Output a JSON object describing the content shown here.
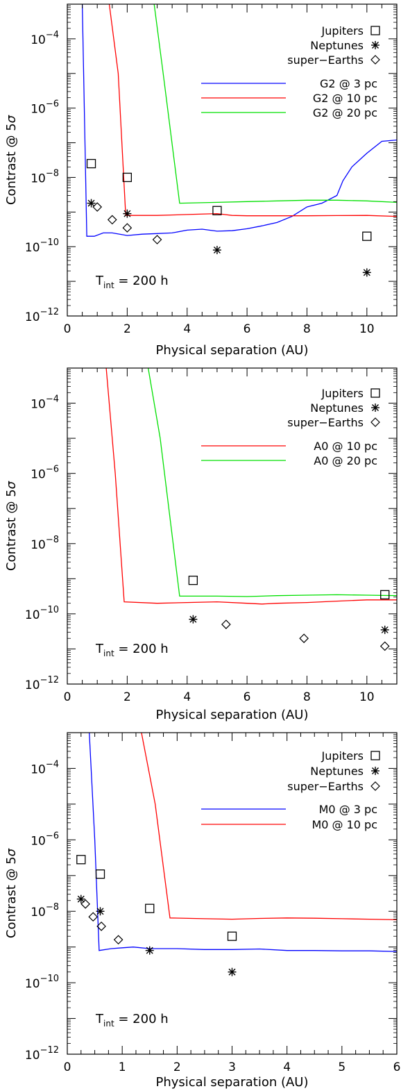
{
  "chart_data": [
    {
      "type": "line",
      "xlabel": "Physical separation (AU)",
      "ylabel": "Contrast @ 5σ",
      "ylabel_parts": {
        "text": "Contrast @ 5",
        "sym": "σ"
      },
      "xlim": [
        0,
        11
      ],
      "ylim": [
        1e-12,
        0.001
      ],
      "y_scale": "log",
      "xticks": [
        0,
        2,
        4,
        6,
        8,
        10
      ],
      "yticks": [
        {
          "value": 1e-12,
          "base": "10",
          "exp": "−12"
        },
        {
          "value": 1e-10,
          "base": "10",
          "exp": "−10"
        },
        {
          "value": 1e-08,
          "base": "10",
          "exp": "−8"
        },
        {
          "value": 1e-06,
          "base": "10",
          "exp": "−6"
        },
        {
          "value": 0.0001,
          "base": "10",
          "exp": "−4"
        }
      ],
      "annotation": {
        "t": "T",
        "sub": "int",
        "rest": " = 200 h"
      },
      "legend_markers": [
        {
          "name": "Jupiters",
          "marker": "square"
        },
        {
          "name": "Neptunes",
          "marker": "asterisk"
        },
        {
          "name": "super−Earths",
          "marker": "diamond"
        }
      ],
      "series": [
        {
          "name": "G2 @ 3 pc",
          "color": "#0000ff",
          "x": [
            0.5,
            0.65,
            0.9,
            1.2,
            1.5,
            2.0,
            2.5,
            3.0,
            3.5,
            4.0,
            4.5,
            5.0,
            5.5,
            6.0,
            6.5,
            7.0,
            7.5,
            8.0,
            8.5,
            9.0,
            9.2,
            9.5,
            10.0,
            10.5,
            11.0
          ],
          "y": [
            0.001,
            2e-10,
            2e-10,
            2.5e-10,
            2.5e-10,
            2.1e-10,
            2.3e-10,
            2.4e-10,
            2.5e-10,
            3e-10,
            3.2e-10,
            2.8e-10,
            2.9e-10,
            3.3e-10,
            4e-10,
            5e-10,
            7.5e-10,
            1.4e-09,
            1.8e-09,
            3e-09,
            8e-09,
            2e-08,
            5e-08,
            1.1e-07,
            1.2e-07
          ]
        },
        {
          "name": "G2 @ 10 pc",
          "color": "#ff0000",
          "x": [
            1.4,
            1.7,
            1.95,
            3.0,
            4.0,
            5.0,
            5.5,
            6.0,
            7.0,
            8.0,
            9.0,
            10.0,
            11.0
          ],
          "y": [
            0.001,
            1e-05,
            8e-10,
            8e-10,
            8.5e-10,
            9e-10,
            8e-10,
            7.8e-10,
            7.8e-10,
            7.8e-10,
            7.9e-10,
            8e-10,
            7.5e-10
          ]
        },
        {
          "name": "G2 @ 20 pc",
          "color": "#00e000",
          "x": [
            2.9,
            3.2,
            3.75,
            5.0,
            6.0,
            7.0,
            8.0,
            9.0,
            10.0,
            11.0
          ],
          "y": [
            0.001,
            1e-05,
            1.8e-09,
            1.9e-09,
            2e-09,
            2.1e-09,
            2.2e-09,
            2.2e-09,
            2.1e-09,
            1.9e-09
          ]
        }
      ],
      "points": {
        "Jupiters": {
          "x": [
            0.8,
            2.0,
            5.0,
            10.0
          ],
          "y": [
            2.5e-08,
            1e-08,
            1.1e-09,
            2e-10
          ]
        },
        "Neptunes": {
          "x": [
            0.8,
            2.0,
            5.0,
            10.0
          ],
          "y": [
            1.8e-09,
            9e-10,
            8e-11,
            1.8e-11
          ]
        },
        "super−Earths": {
          "x": [
            1.0,
            1.5,
            2.0,
            3.0
          ],
          "y": [
            1.4e-09,
            6e-10,
            3.5e-10,
            1.6e-10
          ]
        }
      }
    },
    {
      "type": "line",
      "xlabel": "Physical separation (AU)",
      "ylabel": "Contrast @ 5σ",
      "ylabel_parts": {
        "text": "Contrast @ 5",
        "sym": "σ"
      },
      "xlim": [
        0,
        11
      ],
      "ylim": [
        1e-12,
        0.001
      ],
      "y_scale": "log",
      "xticks": [
        0,
        2,
        4,
        6,
        8,
        10
      ],
      "yticks": [
        {
          "value": 1e-12,
          "base": "10",
          "exp": "−12"
        },
        {
          "value": 1e-10,
          "base": "10",
          "exp": "−10"
        },
        {
          "value": 1e-08,
          "base": "10",
          "exp": "−8"
        },
        {
          "value": 1e-06,
          "base": "10",
          "exp": "−6"
        },
        {
          "value": 0.0001,
          "base": "10",
          "exp": "−4"
        }
      ],
      "annotation": {
        "t": "T",
        "sub": "int",
        "rest": " = 200 h"
      },
      "legend_markers": [
        {
          "name": "Jupiters",
          "marker": "square"
        },
        {
          "name": "Neptunes",
          "marker": "asterisk"
        },
        {
          "name": "super−Earths",
          "marker": "diamond"
        }
      ],
      "series": [
        {
          "name": "A0 @ 10 pc",
          "color": "#ff0000",
          "x": [
            1.3,
            1.6,
            1.9,
            3.0,
            4.0,
            5.0,
            6.0,
            6.5,
            7.0,
            8.0,
            9.0,
            10.0,
            11.0
          ],
          "y": [
            0.001,
            1e-06,
            2.2e-10,
            2e-10,
            2.1e-10,
            2.2e-10,
            2e-10,
            1.9e-10,
            2e-10,
            2.1e-10,
            2.3e-10,
            2.5e-10,
            2.5e-10
          ]
        },
        {
          "name": "A0 @ 20 pc",
          "color": "#00e000",
          "x": [
            2.7,
            3.1,
            3.75,
            5.0,
            6.0,
            7.0,
            8.0,
            9.0,
            10.0,
            11.0
          ],
          "y": [
            0.001,
            1e-05,
            3.2e-10,
            3.2e-10,
            3.1e-10,
            3.3e-10,
            3.4e-10,
            3.5e-10,
            3.4e-10,
            3.3e-10
          ]
        }
      ],
      "points": {
        "Jupiters": {
          "x": [
            4.2,
            10.6
          ],
          "y": [
            9e-10,
            3.5e-10
          ]
        },
        "Neptunes": {
          "x": [
            4.2,
            10.6
          ],
          "y": [
            7e-11,
            3.5e-11
          ]
        },
        "super−Earths": {
          "x": [
            5.3,
            7.9,
            10.6
          ],
          "y": [
            5e-11,
            2e-11,
            1.2e-11
          ]
        }
      }
    },
    {
      "type": "line",
      "xlabel": "Physical separation (AU)",
      "ylabel": "Contrast @ 5σ",
      "ylabel_parts": {
        "text": "Contrast @ 5",
        "sym": "σ"
      },
      "xlim": [
        0,
        6
      ],
      "ylim": [
        1e-12,
        0.001
      ],
      "y_scale": "log",
      "xticks": [
        0,
        1,
        2,
        3,
        4,
        5,
        6
      ],
      "yticks": [
        {
          "value": 1e-12,
          "base": "10",
          "exp": "−12"
        },
        {
          "value": 1e-10,
          "base": "10",
          "exp": "−10"
        },
        {
          "value": 1e-08,
          "base": "10",
          "exp": "−8"
        },
        {
          "value": 1e-06,
          "base": "10",
          "exp": "−6"
        },
        {
          "value": 0.0001,
          "base": "10",
          "exp": "−4"
        }
      ],
      "annotation": {
        "t": "T",
        "sub": "int",
        "rest": " = 200 h"
      },
      "legend_markers": [
        {
          "name": "Jupiters",
          "marker": "square"
        },
        {
          "name": "Neptunes",
          "marker": "asterisk"
        },
        {
          "name": "super−Earths",
          "marker": "diamond"
        }
      ],
      "series": [
        {
          "name": "M0 @ 3 pc",
          "color": "#0000ff",
          "x": [
            0.4,
            0.5,
            0.58,
            0.8,
            1.0,
            1.2,
            1.5,
            2.0,
            2.5,
            3.0,
            3.5,
            4.0,
            4.5,
            5.0,
            5.5,
            6.0
          ],
          "y": [
            0.001,
            1e-06,
            8e-10,
            9e-10,
            9.5e-10,
            1e-09,
            9e-10,
            9e-10,
            8.5e-10,
            8.5e-10,
            8.8e-10,
            8e-10,
            8e-10,
            7.8e-10,
            7.8e-10,
            7.5e-10
          ]
        },
        {
          "name": "M0 @ 10 pc",
          "color": "#ff0000",
          "x": [
            1.35,
            1.6,
            1.87,
            2.5,
            3.0,
            3.5,
            4.0,
            4.5,
            5.0,
            5.5,
            6.0
          ],
          "y": [
            0.001,
            1e-05,
            6.5e-09,
            6.2e-09,
            6e-09,
            6.3e-09,
            6.5e-09,
            6.4e-09,
            6.2e-09,
            6e-09,
            5.8e-09
          ]
        }
      ],
      "points": {
        "Jupiters": {
          "x": [
            0.25,
            0.6,
            1.5,
            3.0
          ],
          "y": [
            2.8e-07,
            1.1e-07,
            1.2e-08,
            2e-09
          ]
        },
        "Neptunes": {
          "x": [
            0.25,
            0.6,
            1.5,
            3.0
          ],
          "y": [
            2.2e-08,
            1e-08,
            8e-10,
            2e-10
          ]
        },
        "super−Earths": {
          "x": [
            0.33,
            0.47,
            0.62,
            0.93
          ],
          "y": [
            1.6e-08,
            7e-09,
            3.8e-09,
            1.6e-09
          ]
        }
      }
    }
  ]
}
